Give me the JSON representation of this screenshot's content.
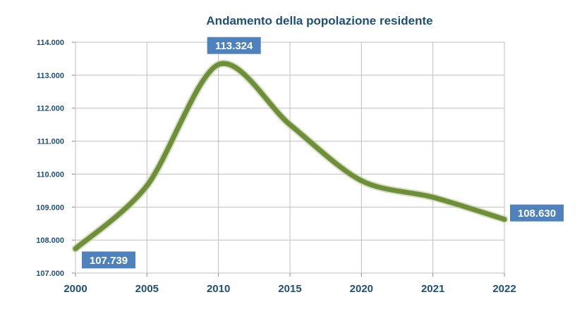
{
  "chart_data": {
    "type": "line",
    "title": "Andamento della popolazione residente",
    "xlabel": "",
    "ylabel": "",
    "categories": [
      "2000",
      "2005",
      "2010",
      "2015",
      "2020",
      "2021",
      "2022"
    ],
    "y_tick_labels": [
      "107.000",
      "108.000",
      "109.000",
      "110.000",
      "111.000",
      "112.000",
      "113.000",
      "114.000"
    ],
    "ylim": [
      107000,
      114000
    ],
    "grid": true,
    "legend": "none",
    "series": [
      {
        "values": [
          107739,
          109650,
          113324,
          111500,
          109800,
          109300,
          108630
        ]
      }
    ],
    "data_labels": [
      {
        "index": 0,
        "text": "107.739"
      },
      {
        "index": 2,
        "text": "113.324"
      },
      {
        "index": 6,
        "text": "108.630"
      }
    ],
    "colors": {
      "line": "#6e8f37",
      "label_bg": "#4f81bd",
      "label_text": "#ffffff",
      "text": "#1f4e79",
      "grid": "#bfbfbf"
    }
  }
}
